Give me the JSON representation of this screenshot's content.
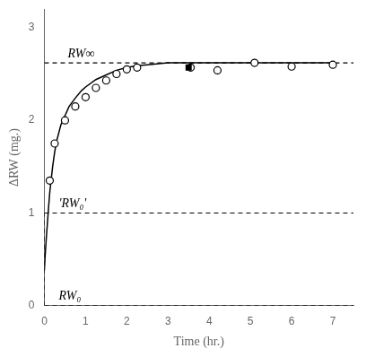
{
  "chart_data": {
    "type": "line",
    "xlabel": "Time (hr.)",
    "ylabel": "ΔRW (mg.)",
    "xlim": [
      0,
      7.5
    ],
    "ylim": [
      0,
      3.2
    ],
    "xticks": [
      0,
      1,
      2,
      3,
      4,
      5,
      6,
      7
    ],
    "yticks": [
      0,
      1,
      2,
      3
    ],
    "grid": false,
    "series": [
      {
        "type": "line",
        "line_style": "dashed",
        "marker": "none",
        "color": "#000000",
        "label": "RW∞",
        "x": [
          0.0,
          7.5
        ],
        "values": [
          2.62,
          2.62
        ]
      },
      {
        "type": "line",
        "line_style": "dashed",
        "marker": "none",
        "color": "#000000",
        "label": "'RW₀'",
        "x": [
          0.0,
          7.5
        ],
        "values": [
          1.0,
          1.0
        ]
      },
      {
        "type": "line",
        "line_style": "dashed",
        "marker": "none",
        "color": "#000000",
        "label": "RW₀",
        "x": [
          0.0,
          7.5
        ],
        "values": [
          0.0,
          0.0
        ]
      },
      {
        "type": "line",
        "line_style": "dashed",
        "marker": "none",
        "color": "#000000",
        "x": [
          0.0,
          0.0
        ],
        "values": [
          0.0,
          1.0
        ]
      },
      {
        "type": "line",
        "line_style": "solid",
        "marker": "none",
        "color": "#000000",
        "x": [
          0.0,
          0.02,
          0.05,
          0.08,
          0.1,
          0.13,
          0.17,
          0.2,
          0.25,
          0.3,
          0.4,
          0.5,
          0.6,
          0.75,
          0.9,
          1.0,
          1.25,
          1.5,
          1.75,
          2.0,
          2.25,
          2.5,
          3.0,
          3.5,
          4.0,
          5.0,
          6.0,
          7.0
        ],
        "values": [
          0.38,
          0.55,
          0.75,
          0.93,
          1.05,
          1.22,
          1.38,
          1.5,
          1.66,
          1.78,
          1.95,
          2.05,
          2.15,
          2.24,
          2.32,
          2.36,
          2.44,
          2.49,
          2.54,
          2.57,
          2.59,
          2.6,
          2.62,
          2.62,
          2.62,
          2.62,
          2.62,
          2.62
        ]
      },
      {
        "type": "scatter",
        "line_style": "none",
        "marker": "open_circle",
        "color": "#000000",
        "x": [
          0.13,
          0.25,
          0.5,
          0.75,
          1.0,
          1.25,
          1.5,
          1.75,
          2.0,
          2.25,
          3.55,
          4.2,
          5.1,
          6.0,
          7.0
        ],
        "values": [
          1.35,
          1.75,
          2.0,
          2.15,
          2.25,
          2.35,
          2.43,
          2.5,
          2.55,
          2.57,
          2.57,
          2.54,
          2.62,
          2.58,
          2.6
        ]
      },
      {
        "type": "scatter",
        "line_style": "none",
        "marker": "square",
        "color": "#000000",
        "x": [
          3.5
        ],
        "values": [
          2.57
        ]
      }
    ]
  }
}
